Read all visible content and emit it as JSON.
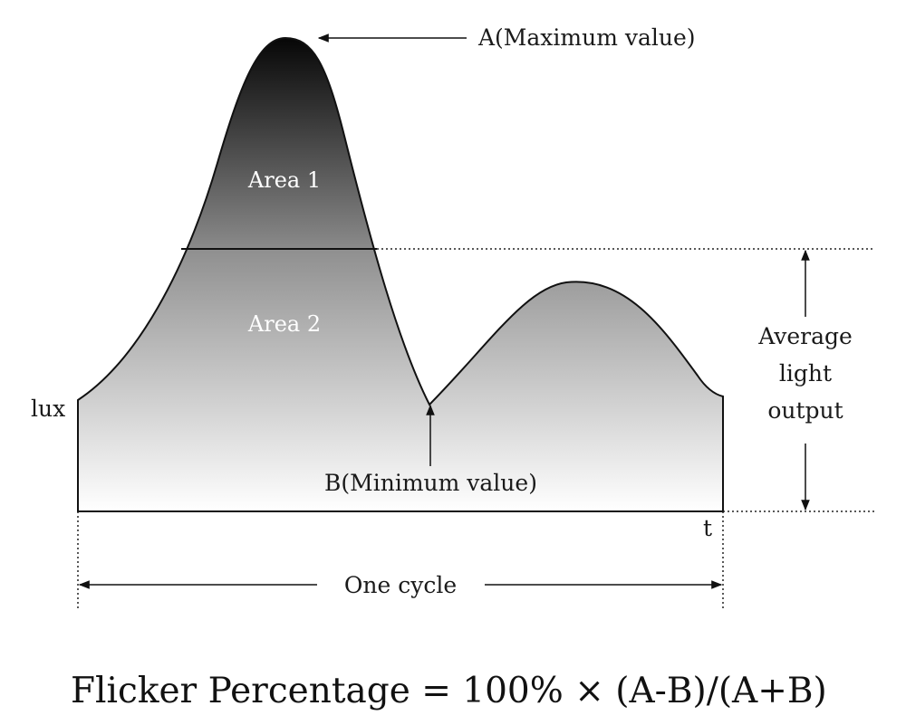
{
  "diagram": {
    "max_label": "A(Maximum value)",
    "min_label": "B(Minimum value)",
    "area1_label": "Area 1",
    "area2_label": "Area 2",
    "y_axis_label": "lux",
    "x_axis_label": "t",
    "cycle_label": "One cycle",
    "average_label_lines": [
      "Average",
      "light",
      "output"
    ],
    "formula": "Flicker Percentage = 100% × (A-B)/(A+B)"
  }
}
